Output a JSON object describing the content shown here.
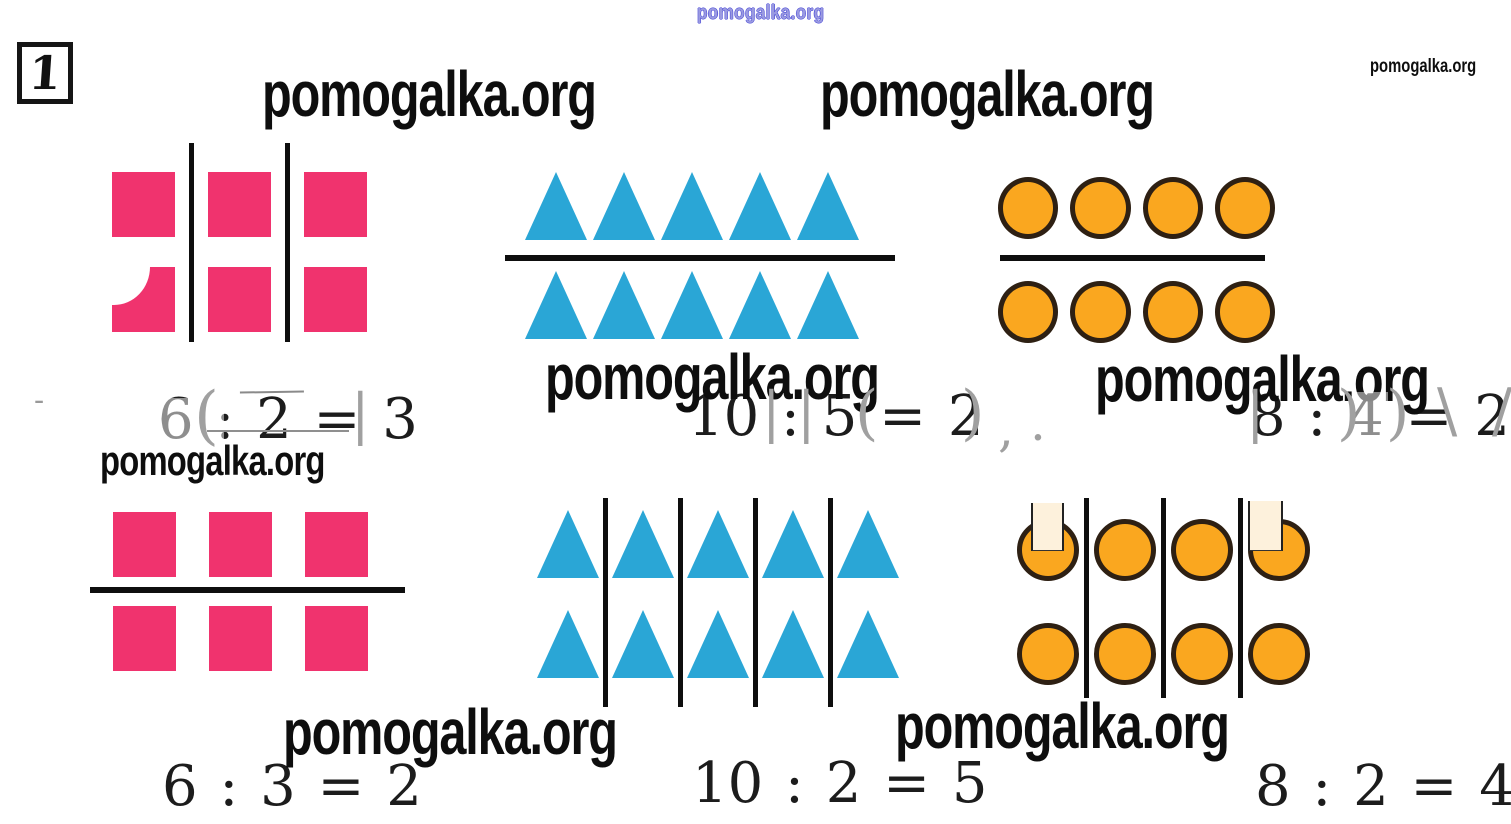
{
  "task": {
    "number": "1"
  },
  "watermark": {
    "text": "pomogalka.org"
  },
  "colors": {
    "square": "#f0336e",
    "triangle": "#2aa6d6",
    "circle_fill": "#faa71f",
    "circle_border": "#2e2013",
    "divider": "#0e0e0e",
    "equation": "#1c1c1c",
    "artifact": "#a0a0a0",
    "watermark_blue": "#3b3bd6"
  },
  "groups": [
    {
      "shape": "square",
      "shape_label": "pink-square",
      "arrangement": "cols",
      "cols": 3,
      "per_col": 2,
      "rows": 0,
      "per_row": 0,
      "equation": "6 : 2 = 3"
    },
    {
      "shape": "triangle",
      "shape_label": "blue-triangle",
      "arrangement": "rows",
      "rows": 2,
      "per_row": 5,
      "cols": 0,
      "per_col": 0,
      "equation": "10 : 5 = 2"
    },
    {
      "shape": "circle",
      "shape_label": "orange-circle",
      "arrangement": "rows",
      "rows": 2,
      "per_row": 4,
      "cols": 0,
      "per_col": 0,
      "equation": "8 : 4 = 2"
    },
    {
      "shape": "square",
      "shape_label": "pink-square",
      "arrangement": "rows",
      "rows": 2,
      "per_row": 3,
      "cols": 0,
      "per_col": 0,
      "equation": "6 : 3 = 2"
    },
    {
      "shape": "triangle",
      "shape_label": "blue-triangle",
      "arrangement": "cols",
      "cols": 5,
      "per_col": 2,
      "rows": 0,
      "per_row": 0,
      "equation": "10 : 2 = 5"
    },
    {
      "shape": "circle",
      "shape_label": "orange-circle",
      "arrangement": "cols",
      "cols": 4,
      "per_col": 2,
      "rows": 0,
      "per_row": 0,
      "equation": "8 : 2 = 4"
    }
  ],
  "artifacts": {
    "open_paren": "(",
    "close_paren": ")",
    "bar": "|",
    "comma": ",",
    "period": ".",
    "dash": "-",
    "backslash": "\\",
    "slash": "/"
  }
}
